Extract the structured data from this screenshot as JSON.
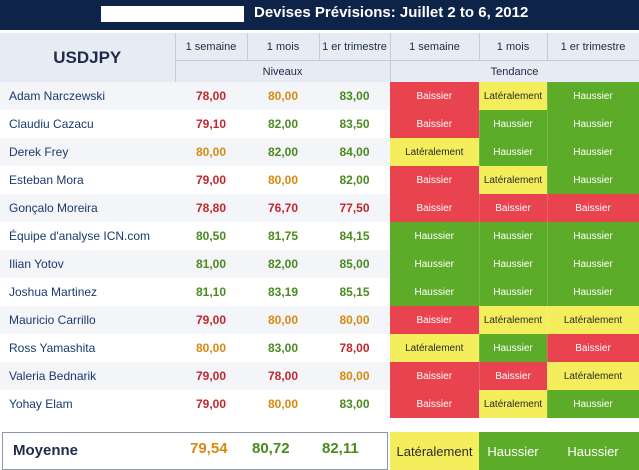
{
  "title": "Devises Prévisions: Juillet 2 to 6, 2012",
  "pair": "USDJPY",
  "columns": [
    "1 semaine",
    "1 mois",
    "1 er trimestre",
    "1 semaine",
    "1 mois",
    "1 er trimestre"
  ],
  "groups": {
    "levels": "Niveaux",
    "trend": "Tendance"
  },
  "colors": {
    "baissier": "#e8434f",
    "haussier": "#5cac2a",
    "lateral": "#f5ee5c",
    "header_bg": "#0d2347"
  },
  "rows": [
    {
      "name": "Adam Narczewski",
      "v": [
        "78,00",
        "80,00",
        "83,00"
      ],
      "vc": [
        "red",
        "orange",
        "green"
      ],
      "t": [
        "Baissier",
        "Latéralement",
        "Haussier"
      ]
    },
    {
      "name": "Claudiu Cazacu",
      "v": [
        "79,10",
        "82,00",
        "83,50"
      ],
      "vc": [
        "red",
        "green",
        "green"
      ],
      "t": [
        "Baissier",
        "Haussier",
        "Haussier"
      ]
    },
    {
      "name": "Derek Frey",
      "v": [
        "80,00",
        "82,00",
        "84,00"
      ],
      "vc": [
        "orange",
        "green",
        "green"
      ],
      "t": [
        "Latéralement",
        "Haussier",
        "Haussier"
      ]
    },
    {
      "name": "Esteban Mora",
      "v": [
        "79,00",
        "80,00",
        "82,00"
      ],
      "vc": [
        "red",
        "orange",
        "green"
      ],
      "t": [
        "Baissier",
        "Latéralement",
        "Haussier"
      ]
    },
    {
      "name": "Gonçalo Moreira",
      "v": [
        "78,80",
        "76,70",
        "77,50"
      ],
      "vc": [
        "red",
        "red",
        "red"
      ],
      "t": [
        "Baissier",
        "Baissier",
        "Baissier"
      ]
    },
    {
      "name": "Équipe d'analyse ICN.com",
      "v": [
        "80,50",
        "81,75",
        "84,15"
      ],
      "vc": [
        "green",
        "green",
        "green"
      ],
      "t": [
        "Haussier",
        "Haussier",
        "Haussier"
      ]
    },
    {
      "name": "Ilian Yotov",
      "v": [
        "81,00",
        "82,00",
        "85,00"
      ],
      "vc": [
        "green",
        "green",
        "green"
      ],
      "t": [
        "Haussier",
        "Haussier",
        "Haussier"
      ]
    },
    {
      "name": "Joshua Martinez",
      "v": [
        "81,10",
        "83,19",
        "85,15"
      ],
      "vc": [
        "green",
        "green",
        "green"
      ],
      "t": [
        "Haussier",
        "Haussier",
        "Haussier"
      ]
    },
    {
      "name": "Mauricio Carrillo",
      "v": [
        "79,00",
        "80,00",
        "80,00"
      ],
      "vc": [
        "red",
        "orange",
        "orange"
      ],
      "t": [
        "Baissier",
        "Latéralement",
        "Latéralement"
      ]
    },
    {
      "name": "Ross Yamashita",
      "v": [
        "80,00",
        "83,00",
        "78,00"
      ],
      "vc": [
        "orange",
        "green",
        "red"
      ],
      "t": [
        "Latéralement",
        "Haussier",
        "Baissier"
      ]
    },
    {
      "name": "Valeria Bednarik",
      "v": [
        "79,00",
        "78,00",
        "80,00"
      ],
      "vc": [
        "red",
        "red",
        "orange"
      ],
      "t": [
        "Baissier",
        "Baissier",
        "Latéralement"
      ]
    },
    {
      "name": "Yohay Elam",
      "v": [
        "79,00",
        "80,00",
        "83,00"
      ],
      "vc": [
        "red",
        "orange",
        "green"
      ],
      "t": [
        "Baissier",
        "Latéralement",
        "Haussier"
      ]
    }
  ],
  "average": {
    "label": "Moyenne",
    "v": [
      "79,54",
      "80,72",
      "82,11"
    ],
    "vc": [
      "orange",
      "green",
      "green"
    ],
    "t": [
      "Latéralement",
      "Haussier",
      "Haussier"
    ]
  }
}
